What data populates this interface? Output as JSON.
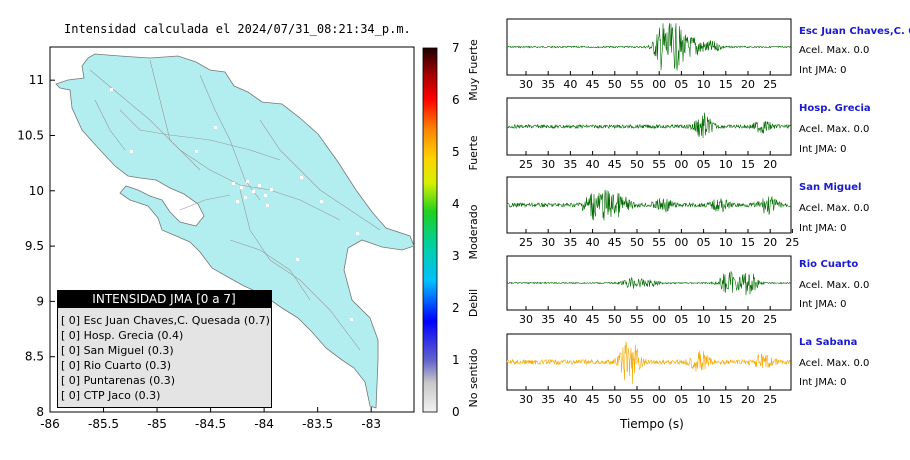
{
  "map": {
    "title": "Intensidad calculada el 2024/07/31_08:21:34_p.m.",
    "x_ticks": [
      "-86",
      "-85.5",
      "-85",
      "-84.5",
      "-84",
      "-83.5",
      "-83"
    ],
    "y_ticks": [
      "11",
      "10.5",
      "10",
      "9.5",
      "9",
      "8.5",
      "8"
    ]
  },
  "colorbar": {
    "ticks": [
      "7",
      "6",
      "5",
      "4",
      "3",
      "2",
      "1",
      "0"
    ],
    "categories": [
      "Muy Fuerte",
      "Fuerte",
      "Moderado",
      "Debil",
      "No sentido"
    ]
  },
  "legend": {
    "header": "INTENSIDAD JMA [0 a 7]",
    "items": [
      "[ 0]  Esc Juan Chaves,C. Quesada (0.7)",
      "[ 0]  Hosp. Grecia (0.4)",
      "[ 0]  San Miguel (0.3)",
      "[ 0]  Rio Cuarto (0.3)",
      "[ 0]  Puntarenas (0.3)",
      "[ 0]  CTP Jaco (0.3)"
    ]
  },
  "stations": [
    {
      "name": "Esc Juan Chaves,C. Qu",
      "accel": "Acel. Max. 0.0",
      "int": "Int JMA: 0",
      "ticks": [
        "30",
        "35",
        "40",
        "45",
        "50",
        "55",
        "00",
        "05",
        "10",
        "15",
        "20",
        "25"
      ],
      "color": "#006b00"
    },
    {
      "name": "Hosp. Grecia",
      "accel": "Acel. Max. 0.0",
      "int": "Int JMA: 0",
      "ticks": [
        "25",
        "30",
        "35",
        "40",
        "45",
        "50",
        "55",
        "00",
        "05",
        "10",
        "15",
        "20"
      ],
      "color": "#006b00"
    },
    {
      "name": "San Miguel",
      "accel": "Acel. Max. 0.0",
      "int": "Int JMA: 0",
      "ticks": [
        "25",
        "30",
        "35",
        "40",
        "45",
        "50",
        "55",
        "00",
        "05",
        "10",
        "15",
        "20",
        "25"
      ],
      "color": "#006b00"
    },
    {
      "name": "Rio Cuarto",
      "accel": "Acel. Max. 0.0",
      "int": "Int JMA: 0",
      "ticks": [
        "30",
        "35",
        "40",
        "45",
        "50",
        "55",
        "00",
        "05",
        "10",
        "15",
        "20",
        "25"
      ],
      "color": "#006b00"
    },
    {
      "name": "La Sabana",
      "accel": "Acel. Max. 0.0",
      "int": "Int JMA: 0",
      "ticks": [
        "30",
        "35",
        "40",
        "45",
        "50",
        "55",
        "00",
        "05",
        "10",
        "15",
        "20",
        "25"
      ],
      "color": "#f5a800"
    }
  ],
  "xlabel": "Tiempo (s)",
  "chart_data": [
    {
      "type": "map",
      "title": "Intensidad calculada el 2024/07/31_08:21:34_p.m.",
      "xlim": [
        -86,
        -82.6
      ],
      "ylim": [
        8,
        11.3
      ],
      "colorbar_range": [
        0,
        7
      ],
      "stations_jma": [
        {
          "name": "Esc Juan Chaves,C. Quesada",
          "intensity": 0.7
        },
        {
          "name": "Hosp. Grecia",
          "intensity": 0.4
        },
        {
          "name": "San Miguel",
          "intensity": 0.3
        },
        {
          "name": "Rio Cuarto",
          "intensity": 0.3
        },
        {
          "name": "Puntarenas",
          "intensity": 0.3
        },
        {
          "name": "CTP Jaco",
          "intensity": 0.3
        }
      ]
    },
    {
      "type": "line",
      "xlabel": "Tiempo (s)",
      "series": [
        {
          "name": "Esc Juan Chaves,C. Qu",
          "peak_accel": 0.0,
          "jma": 0
        },
        {
          "name": "Hosp. Grecia",
          "peak_accel": 0.0,
          "jma": 0
        },
        {
          "name": "San Miguel",
          "peak_accel": 0.0,
          "jma": 0
        },
        {
          "name": "Rio Cuarto",
          "peak_accel": 0.0,
          "jma": 0
        },
        {
          "name": "La Sabana",
          "peak_accel": 0.0,
          "jma": 0
        }
      ]
    }
  ]
}
